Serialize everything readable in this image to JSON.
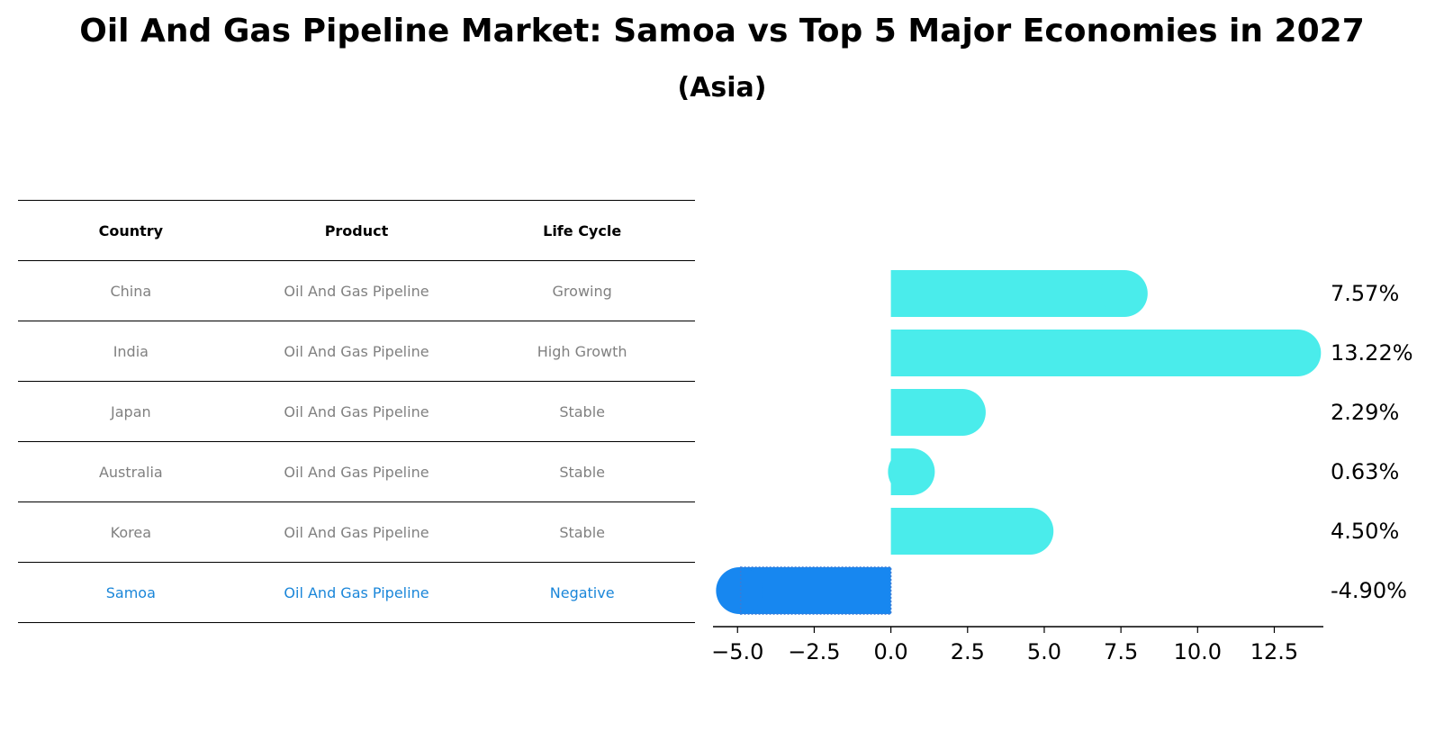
{
  "chart_data": {
    "type": "bar",
    "orientation": "horizontal",
    "title": "Oil And Gas Pipeline Market: Samoa vs Top 5 Major Economies in 2027",
    "subtitle": "(Asia)",
    "categories": [
      "China",
      "India",
      "Japan",
      "Australia",
      "Korea",
      "Samoa"
    ],
    "values": [
      7.57,
      13.22,
      2.29,
      0.63,
      4.5,
      -4.9
    ],
    "value_labels": [
      "7.57%",
      "13.22%",
      "2.29%",
      "0.63%",
      "4.50%",
      "-4.90%"
    ],
    "highlight_category": "Samoa",
    "xlim": [
      -5.8,
      14.1
    ],
    "xticks": [
      -5.0,
      -2.5,
      0.0,
      2.5,
      5.0,
      7.5,
      10.0,
      12.5
    ],
    "xtick_labels": [
      "−5.0",
      "−2.5",
      "0.0",
      "2.5",
      "5.0",
      "7.5",
      "10.0",
      "12.5"
    ],
    "colors": {
      "positive": "#4aeceb",
      "highlight": "#1787f0"
    }
  },
  "table": {
    "headers": [
      "Country",
      "Product",
      "Life Cycle"
    ],
    "rows": [
      [
        "China",
        "Oil And Gas Pipeline",
        "Growing"
      ],
      [
        "India",
        "Oil And Gas Pipeline",
        "High Growth"
      ],
      [
        "Japan",
        "Oil And Gas Pipeline",
        "Stable"
      ],
      [
        "Australia",
        "Oil And Gas Pipeline",
        "Stable"
      ],
      [
        "Korea",
        "Oil And Gas Pipeline",
        "Stable"
      ],
      [
        "Samoa",
        "Oil And Gas Pipeline",
        "Negative"
      ]
    ],
    "highlight_row": 5,
    "colors": {
      "text": "#808080",
      "highlight_text": "#1a86d9"
    }
  }
}
